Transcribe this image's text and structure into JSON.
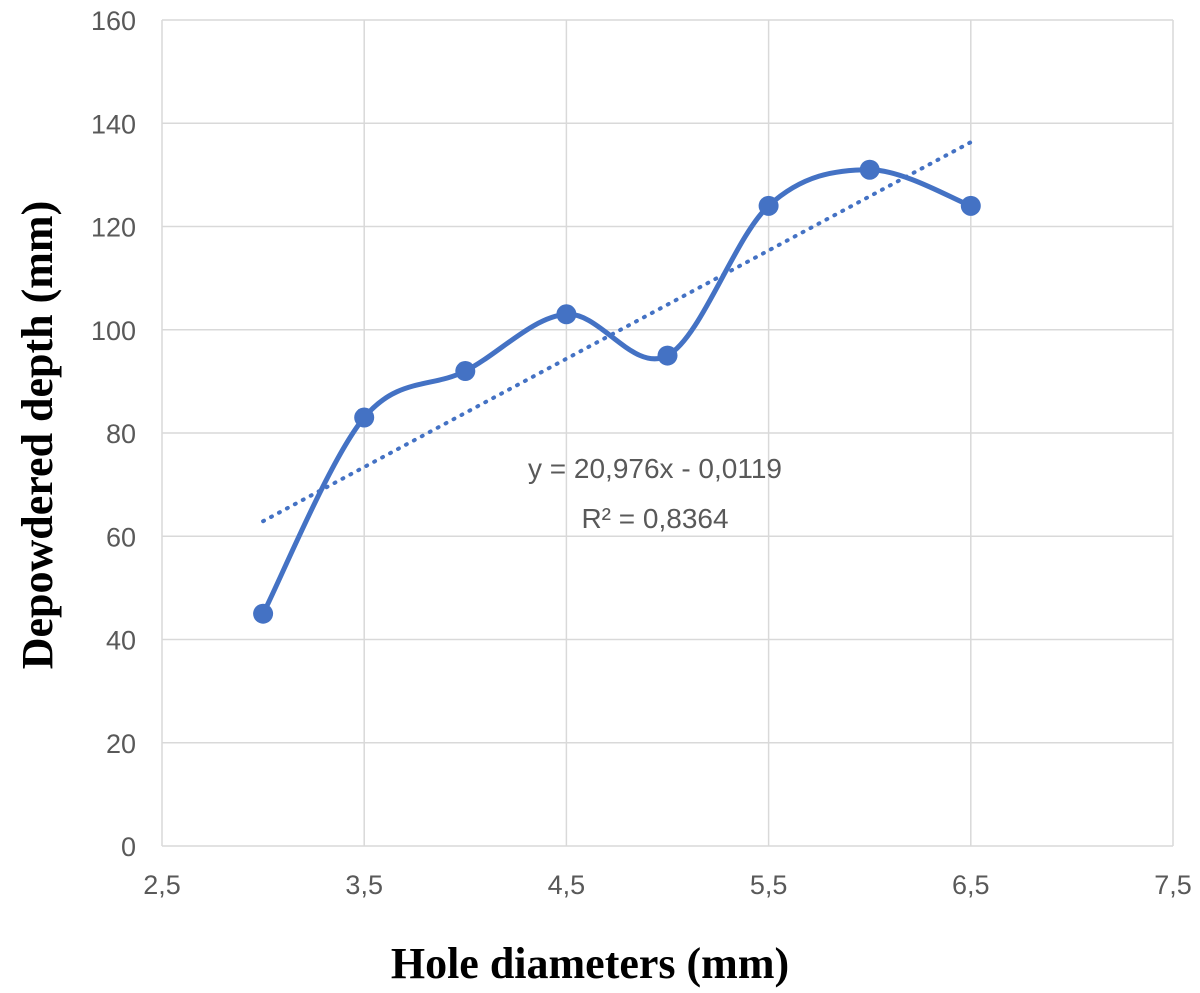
{
  "chart_data": {
    "type": "scatter",
    "xlabel": "Hole diameters (mm)",
    "ylabel": "Depowdered depth (mm)",
    "xlim": [
      2.5,
      7.5
    ],
    "ylim": [
      0,
      160
    ],
    "x_ticks": [
      2.5,
      3.5,
      4.5,
      5.5,
      6.5,
      7.5
    ],
    "x_tick_labels": [
      "2,5",
      "3,5",
      "4,5",
      "5,5",
      "6,5",
      "7,5"
    ],
    "y_ticks": [
      0,
      20,
      40,
      60,
      80,
      100,
      120,
      140,
      160
    ],
    "y_tick_labels": [
      "0",
      "20",
      "40",
      "60",
      "80",
      "100",
      "120",
      "140",
      "160"
    ],
    "grid": true,
    "legend": "none",
    "series": [
      {
        "x": [
          3,
          3.5,
          4,
          4.5,
          5,
          5.5,
          6,
          6.5
        ],
        "y": [
          45,
          83,
          92,
          103,
          95,
          124,
          131,
          124
        ],
        "line_style": "smoothed",
        "marker": "circle",
        "color": "#4472c4"
      }
    ],
    "trendline": {
      "type": "linear",
      "style": "dotted",
      "color": "#4472c4",
      "x_range": [
        3,
        6.5
      ],
      "equation": "y = 20,976x - 0,0119",
      "r_squared": "R² = 0,8364"
    }
  }
}
